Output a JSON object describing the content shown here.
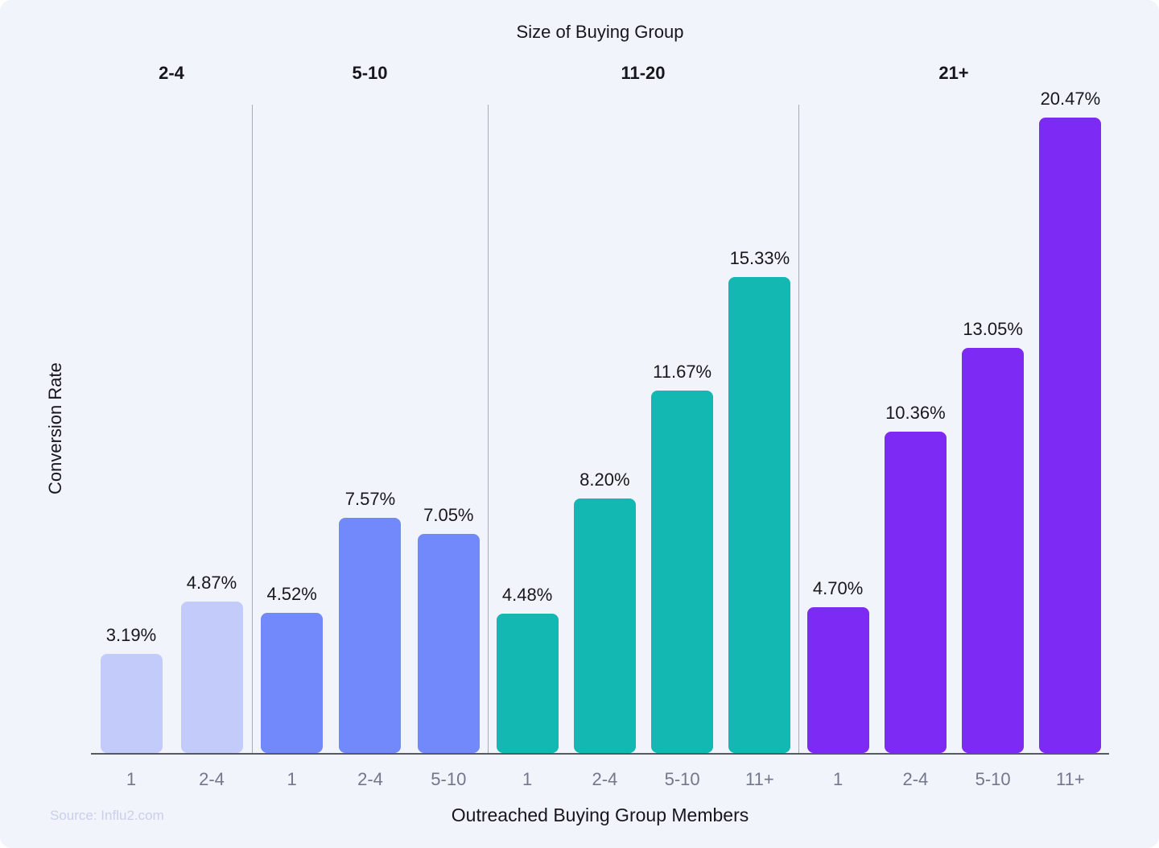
{
  "page": {
    "title": "Size of Buying Group",
    "x_axis_label": "Outreached Buying Group Members",
    "y_axis_label": "Conversion Rate",
    "source": "Source: Influ2.com"
  },
  "colors": {
    "background": "#f2f4fc",
    "axis_line": "#56595f",
    "divider_line": "#a8abb3",
    "tick_label": "#73778a",
    "value_label": "#17181c",
    "source_text": "#c9cfec",
    "group_2_4": "#c2cbfa",
    "group_5_10": "#7189fa",
    "group_11_20": "#14b8b2",
    "group_21_plus": "#7e2af5"
  },
  "chart_data": {
    "type": "bar",
    "title": "Size of Buying Group",
    "xlabel": "Outreached Buying Group Members",
    "ylabel": "Conversion Rate",
    "ylim": [
      0,
      21
    ],
    "grid": false,
    "legend": "none",
    "groups": [
      {
        "label": "2-4",
        "color": "#c2cbfa",
        "categories": [
          "1",
          "2-4"
        ],
        "values": [
          3.19,
          4.87
        ],
        "value_labels": [
          "3.19%",
          "4.87%"
        ]
      },
      {
        "label": "5-10",
        "color": "#7189fa",
        "categories": [
          "1",
          "2-4",
          "5-10"
        ],
        "values": [
          4.52,
          7.57,
          7.05
        ],
        "value_labels": [
          "4.52%",
          "7.57%",
          "7.05%"
        ]
      },
      {
        "label": "11-20",
        "color": "#14b8b2",
        "categories": [
          "1",
          "2-4",
          "5-10",
          "11+"
        ],
        "values": [
          4.48,
          8.2,
          11.67,
          15.33
        ],
        "value_labels": [
          "4.48%",
          "8.20%",
          "11.67%",
          "15.33%"
        ]
      },
      {
        "label": "21+",
        "color": "#7e2af5",
        "categories": [
          "1",
          "2-4",
          "5-10",
          "11+"
        ],
        "values": [
          4.7,
          10.36,
          13.05,
          20.47
        ],
        "value_labels": [
          "4.70%",
          "10.36%",
          "13.05%",
          "20.47%"
        ]
      }
    ]
  }
}
